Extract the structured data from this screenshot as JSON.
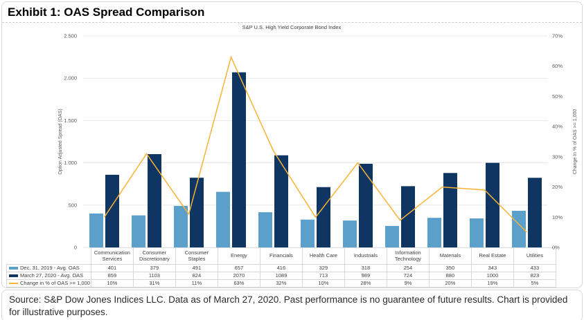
{
  "exhibit": {
    "title": "Exhibit 1: OAS Spread Comparison",
    "source_note": "Source: S&P Dow Jones Indices LLC. Data as of March 27, 2020. Past performance is no guarantee of future results. Chart is provided for illustrative purposes."
  },
  "colors": {
    "grid": "#e8e8e8",
    "axis_text": "#595959",
    "table_border": "#d7d7d7",
    "frame_border": "#d8d8d8"
  },
  "chart_data": {
    "type": "bar",
    "subtype": "grouped bars with line on secondary axis",
    "title": "S&P U.S. High Yield Corporate Bond Index",
    "categories": [
      "Communication Services",
      "Consumer Discretionary",
      "Consumer Staples",
      "Energy",
      "Financials",
      "Health Care",
      "Industrials",
      "Information Technology",
      "Materials",
      "Real Estate",
      "Utilities"
    ],
    "series": [
      {
        "name": "Dec. 31, 2019 - Avg. OAS",
        "kind": "bar",
        "axis": "left",
        "color": "#5b9fcb",
        "values": [
          401,
          379,
          491,
          657,
          416,
          329,
          318,
          254,
          350,
          343,
          433
        ]
      },
      {
        "name": "March 27, 2020 - Avg. OAS",
        "kind": "bar",
        "axis": "left",
        "color": "#0f3563",
        "values": [
          859,
          1103,
          824,
          2070,
          1089,
          713,
          989,
          724,
          880,
          1000,
          823
        ]
      },
      {
        "name": "Change in % of OAS >= 1,000",
        "kind": "line",
        "axis": "right",
        "color": "#f9b234",
        "values": [
          10,
          31,
          11,
          63,
          32,
          10,
          28,
          9,
          20,
          19,
          5
        ],
        "value_labels": [
          "10%",
          "31%",
          "11%",
          "63%",
          "32%",
          "10%",
          "28%",
          "9%",
          "20%",
          "19%",
          "5%"
        ]
      }
    ],
    "left_axis": {
      "title": "Option Adjusted Spread (OAS)",
      "min": 0,
      "max": 2500,
      "tick_step": 500,
      "tick_labels": [
        "0",
        "500",
        "1.000",
        "1.500",
        "2.000",
        "2.500"
      ]
    },
    "right_axis": {
      "title": "Change In % of OAS >= 1,000",
      "min": 0,
      "max": 70,
      "tick_step": 10,
      "tick_labels": [
        "0%",
        "10%",
        "20%",
        "30%",
        "40%",
        "50%",
        "60%",
        "70%"
      ]
    },
    "grid": "horizontal",
    "legend_position": "data-table-left"
  }
}
